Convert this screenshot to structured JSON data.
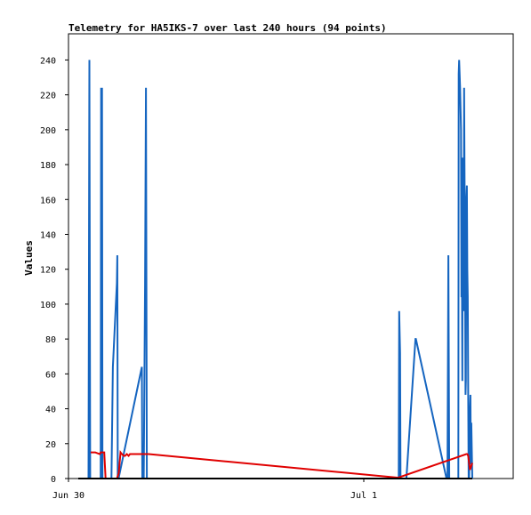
{
  "chart_data": {
    "type": "line",
    "title": "Telemetry for HA5IKS-7 over last 240 hours (94 points)",
    "ylabel": "Values",
    "xlabel": "",
    "ylim": [
      0,
      255
    ],
    "yticks": [
      0,
      20,
      40,
      60,
      80,
      100,
      120,
      140,
      160,
      180,
      200,
      220,
      240
    ],
    "xlim": [
      0,
      1.52
    ],
    "xticks": [
      {
        "label": "Jun 30",
        "x": 0
      },
      {
        "label": "Jul 1",
        "x": 1
      }
    ],
    "grid": false,
    "series": [
      {
        "color": "#1565c0",
        "x": [
          0.0345,
          0.0375,
          0.0405,
          0.0758,
          0.0773,
          0.0788,
          0.0804,
          0.0819,
          0.1125,
          0.1171,
          0.1308,
          0.1323,
          0.1338,
          0.1363,
          0.2155,
          0.217,
          0.2216,
          0.2262,
          0.2292,
          0.2323,
          0.2338,
          0.2369,
          1.0837,
          1.0852,
          1.0868,
          1.0898,
          1.0913,
          1.1112,
          1.1418,
          1.1433,
          1.2471,
          1.2502,
          1.2532,
          1.2563,
          1.2869,
          1.2884,
          1.2899,
          1.293,
          1.296,
          1.2976,
          1.2991,
          1.3006,
          1.3021,
          1.3037,
          1.3052,
          1.3067,
          1.3098,
          1.3113,
          1.3128,
          1.3143,
          1.3159,
          1.3174,
          1.3189,
          1.3205,
          1.322,
          1.3235,
          1.325,
          1.3266,
          1.3281,
          1.3296,
          1.3311,
          1.3342
        ],
        "values": [
          0,
          240,
          0,
          0,
          224,
          112,
          224,
          0,
          0,
          64,
          112,
          128,
          0,
          0,
          64,
          0,
          0,
          112,
          224,
          0,
          0,
          0,
          0,
          0,
          96,
          72,
          0,
          0,
          80,
          80,
          0,
          0,
          128,
          0,
          0,
          232,
          240,
          224,
          200,
          104,
          120,
          56,
          184,
          128,
          96,
          224,
          112,
          48,
          56,
          160,
          168,
          120,
          104,
          48,
          0,
          0,
          16,
          40,
          48,
          8,
          32,
          0
        ]
      },
      {
        "color": "#e00000",
        "x": [
          0.0421,
          0.0573,
          0.0726,
          0.0758,
          0.088,
          0.0926,
          0.1003,
          0.1125,
          0.1186,
          0.1247,
          0.1309,
          0.137,
          0.1431,
          0.1477,
          0.1538,
          0.1584,
          0.1645,
          0.1706,
          0.1751,
          0.1797,
          0.1858,
          0.1935,
          0.2034,
          0.2171,
          0.2323,
          0.2384,
          1.0806,
          1.0837,
          1.3143,
          1.3174,
          1.3205,
          1.3266,
          1.3342
        ],
        "values": [
          15,
          15,
          14,
          15,
          15,
          0,
          0,
          0,
          0,
          0,
          0,
          3,
          15,
          14,
          13,
          13,
          14,
          13,
          14,
          14,
          14,
          14,
          14,
          14,
          14,
          14,
          0.5,
          0.5,
          14,
          14,
          13,
          5,
          9
        ]
      },
      {
        "color": "#000000",
        "x": [
          0.0,
          1.3342
        ],
        "values": [
          0,
          0
        ]
      }
    ]
  }
}
